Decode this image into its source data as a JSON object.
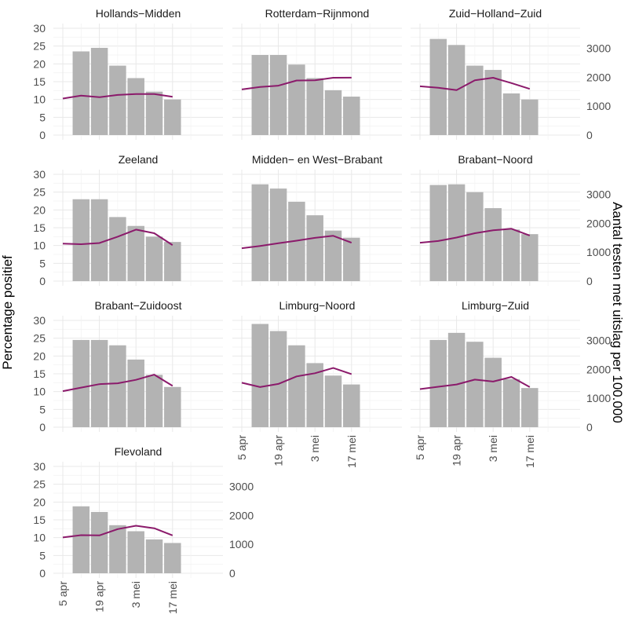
{
  "chart_data": {
    "type": "bar",
    "ylabel": "Percentage positief",
    "ylabel_right": "Aantal testen met uitslag per 100.000",
    "x_tick_labels": [
      "5 apr",
      "19 apr",
      "3 mei",
      "17 mei"
    ],
    "y_ticks_left": [
      0,
      5,
      10,
      15,
      20,
      25,
      30
    ],
    "y_ticks_right": [
      0,
      1000,
      2000,
      3000
    ],
    "ylim_left": [
      0,
      30
    ],
    "ylim_right": [
      0,
      3700
    ],
    "grid": true,
    "bar_color": "#b3b3b3",
    "line_color": "#8b1a6b",
    "bar_weeks": [
      1,
      2,
      3,
      4,
      5,
      6
    ],
    "line_weeks": [
      0,
      1,
      2,
      3,
      4,
      5,
      6
    ],
    "panels": [
      {
        "title": "Hollands−Midden",
        "bars": [
          23.5,
          24.5,
          19.5,
          16,
          12.2,
          10
        ],
        "line": [
          1265,
          1365,
          1310,
          1390,
          1420,
          1420,
          1325
        ]
      },
      {
        "title": "Rotterdam−Rijnmond",
        "bars": [
          22.5,
          22.5,
          19.8,
          16,
          12.6,
          10.8
        ],
        "line": [
          1580,
          1665,
          1710,
          1890,
          1900,
          1985,
          1990
        ]
      },
      {
        "title": "Zuid−Holland−Zuid",
        "bars": [
          27,
          25.3,
          19.5,
          18.3,
          11.7,
          10
        ],
        "line": [
          1690,
          1640,
          1560,
          1900,
          1985,
          1800,
          1600
        ]
      },
      {
        "title": "Zeeland",
        "bars": [
          23,
          23,
          18,
          15.5,
          12.5,
          11
        ],
        "line": [
          1300,
          1280,
          1320,
          1540,
          1785,
          1660,
          1250
        ]
      },
      {
        "title": "Midden− en West−Brabant",
        "bars": [
          27.2,
          26,
          22.3,
          18.5,
          14.2,
          12.2
        ],
        "line": [
          1140,
          1220,
          1310,
          1400,
          1500,
          1570,
          1330
        ]
      },
      {
        "title": "Brabant−Noord",
        "bars": [
          27,
          27.2,
          25,
          20.5,
          14.5,
          13.2
        ],
        "line": [
          1330,
          1390,
          1510,
          1660,
          1760,
          1815,
          1580
        ]
      },
      {
        "title": "Brabant−Zuidoost",
        "bars": [
          24.5,
          24.5,
          23,
          19,
          14.7,
          11.3
        ],
        "line": [
          1250,
          1370,
          1490,
          1520,
          1640,
          1820,
          1430
        ]
      },
      {
        "title": "Limburg−Noord",
        "bars": [
          29,
          27,
          23,
          18,
          14.5,
          12
        ],
        "line": [
          1540,
          1390,
          1500,
          1760,
          1870,
          2050,
          1840
        ]
      },
      {
        "title": "Limburg−Zuid",
        "bars": [
          24.5,
          26.5,
          24,
          19.5,
          13.5,
          11
        ],
        "line": [
          1320,
          1400,
          1480,
          1650,
          1580,
          1740,
          1390
        ]
      },
      {
        "title": "Flevoland",
        "bars": [
          18.8,
          17.2,
          13.5,
          11.8,
          9.5,
          8.5
        ],
        "line": [
          1240,
          1320,
          1310,
          1530,
          1645,
          1560,
          1310
        ]
      }
    ]
  }
}
